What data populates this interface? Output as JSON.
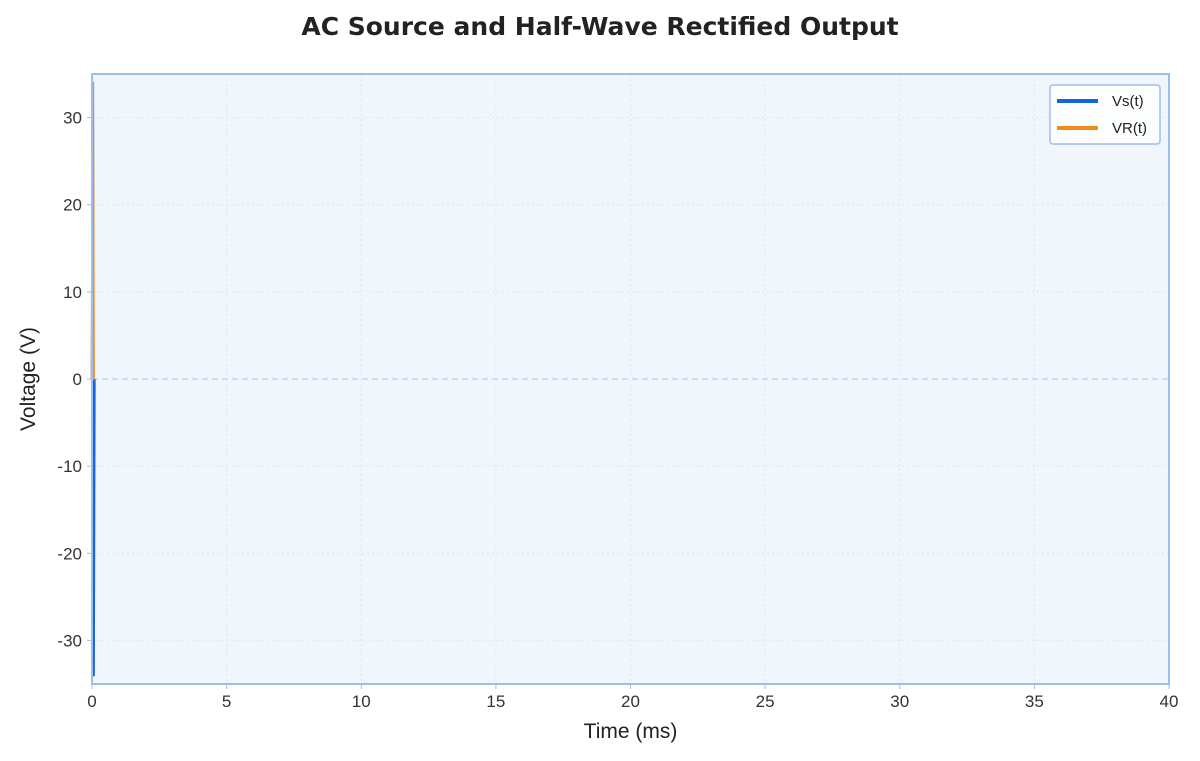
{
  "chart_data": {
    "type": "line",
    "title": "AC Source and Half-Wave Rectified Output",
    "xlabel": "Time (ms)",
    "ylabel": "Voltage (V)",
    "xlim": [
      0,
      40
    ],
    "ylim": [
      -35,
      35
    ],
    "xticks": [
      0,
      5,
      10,
      15,
      20,
      25,
      30,
      35,
      40
    ],
    "yticks": [
      -30,
      -20,
      -10,
      0,
      10,
      20,
      30
    ],
    "grid": true,
    "legend_position": "top-right",
    "series": [
      {
        "name": "Vs(t)",
        "color": "#1565e0",
        "x": [
          0,
          0.03,
          0.06,
          0.09
        ],
        "y": [
          0,
          34,
          -34,
          0
        ]
      },
      {
        "name": "VR(t)",
        "color": "#f58a1f",
        "x": [
          0,
          0.03,
          0.06,
          0.09
        ],
        "y": [
          0,
          34,
          0,
          0
        ]
      }
    ]
  }
}
